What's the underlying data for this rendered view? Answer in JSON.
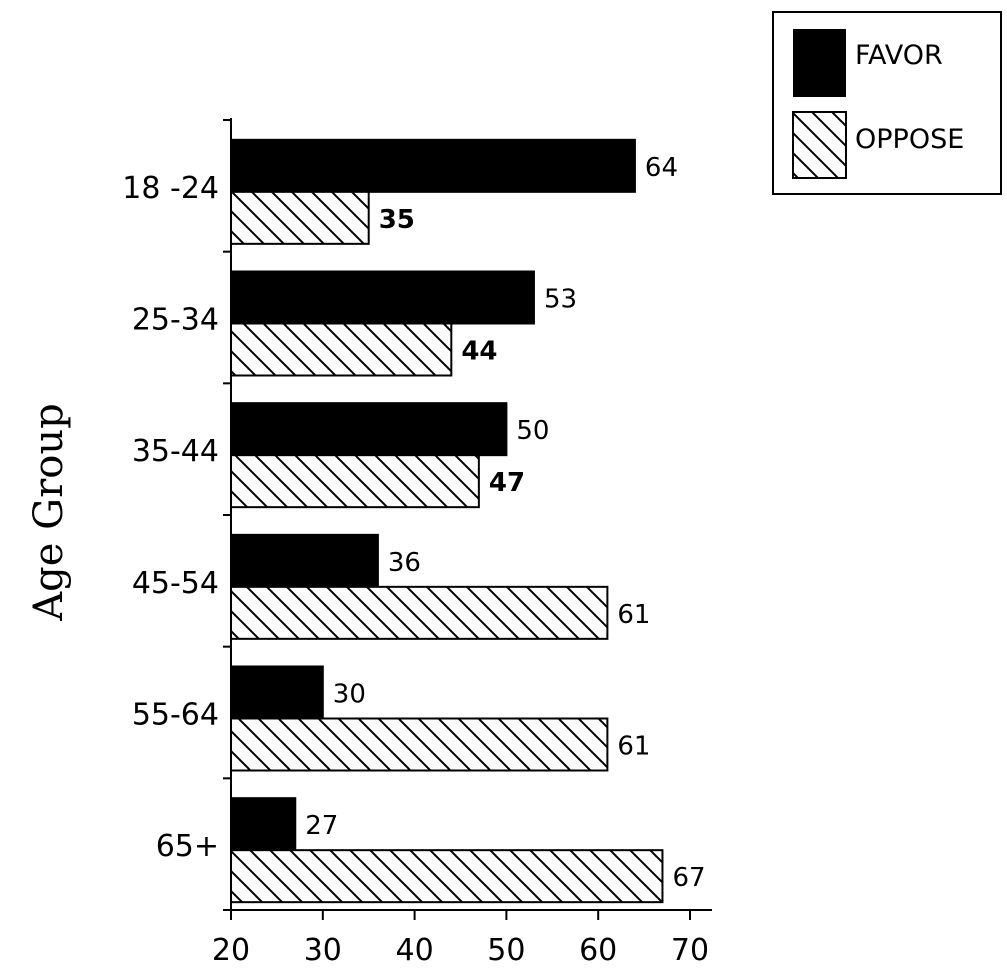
{
  "chart_data": {
    "type": "bar",
    "orientation": "horizontal",
    "title": "",
    "xlabel": "",
    "ylabel": "Age Group",
    "categories": [
      "18 -24",
      "25-34",
      "35-44",
      "45-54",
      "55-64",
      "65+"
    ],
    "series": [
      {
        "name": "FAVOR",
        "values": [
          64,
          53,
          50,
          36,
          30,
          27
        ],
        "fill": "solid-black"
      },
      {
        "name": "OPPOSE",
        "values": [
          35,
          44,
          47,
          61,
          61,
          67
        ],
        "fill": "diagonal-hatch"
      }
    ],
    "xlim": [
      20,
      70
    ],
    "xticks": [
      20,
      30,
      40,
      50,
      60,
      70
    ],
    "grid": false,
    "legend": "top-right",
    "colors": {
      "favor": "#000000",
      "oppose_stroke": "#000000",
      "background": "#ffffff"
    }
  }
}
